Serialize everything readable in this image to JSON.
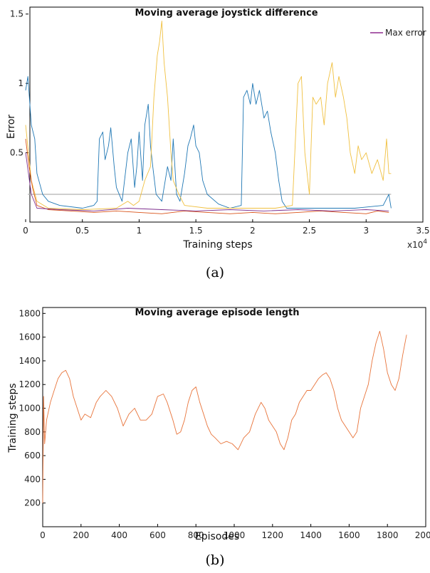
{
  "charts": [
    {
      "type": "line",
      "title": "Moving average joystick difference",
      "xlabel": "Training steps",
      "ylabel": "Error",
      "x_multiplier": "x10",
      "x_multiplier_exp": "4",
      "caption": "(a)",
      "xlim": [
        0,
        3.5
      ],
      "ylim": [
        0,
        1.55
      ],
      "xticks": [
        0,
        0.5,
        1,
        1.5,
        2,
        2.5,
        3,
        3.5
      ],
      "xtick_labels": [
        "0",
        "0.5",
        "1",
        "1.5",
        "2",
        "2.5",
        "3",
        "3.5"
      ],
      "yticks": [
        0.5,
        1,
        1.5
      ],
      "ytick_labels": [
        "0.5",
        "1",
        "1.5"
      ],
      "legend": [
        {
          "label": "Max error",
          "color": "#8e2c8e"
        }
      ],
      "threshold": 0.2,
      "series": [
        {
          "color": "#1f77b4",
          "points": [
            [
              0,
              0.95
            ],
            [
              0.02,
              1.05
            ],
            [
              0.05,
              0.7
            ],
            [
              0.08,
              0.6
            ],
            [
              0.1,
              0.35
            ],
            [
              0.15,
              0.2
            ],
            [
              0.2,
              0.15
            ],
            [
              0.3,
              0.12
            ],
            [
              0.5,
              0.1
            ],
            [
              0.6,
              0.12
            ],
            [
              0.63,
              0.15
            ],
            [
              0.65,
              0.6
            ],
            [
              0.68,
              0.65
            ],
            [
              0.7,
              0.45
            ],
            [
              0.73,
              0.55
            ],
            [
              0.75,
              0.68
            ],
            [
              0.78,
              0.4
            ],
            [
              0.8,
              0.25
            ],
            [
              0.85,
              0.15
            ],
            [
              0.9,
              0.5
            ],
            [
              0.93,
              0.6
            ],
            [
              0.96,
              0.25
            ],
            [
              0.98,
              0.4
            ],
            [
              1,
              0.65
            ],
            [
              1.03,
              0.3
            ],
            [
              1.05,
              0.7
            ],
            [
              1.08,
              0.85
            ],
            [
              1.1,
              0.55
            ],
            [
              1.12,
              0.4
            ],
            [
              1.15,
              0.2
            ],
            [
              1.2,
              0.15
            ],
            [
              1.25,
              0.4
            ],
            [
              1.28,
              0.3
            ],
            [
              1.3,
              0.6
            ],
            [
              1.33,
              0.2
            ],
            [
              1.36,
              0.15
            ],
            [
              1.4,
              0.35
            ],
            [
              1.43,
              0.55
            ],
            [
              1.45,
              0.6
            ],
            [
              1.48,
              0.7
            ],
            [
              1.5,
              0.55
            ],
            [
              1.53,
              0.5
            ],
            [
              1.56,
              0.3
            ],
            [
              1.6,
              0.2
            ],
            [
              1.7,
              0.13
            ],
            [
              1.8,
              0.1
            ],
            [
              1.9,
              0.12
            ],
            [
              1.92,
              0.9
            ],
            [
              1.95,
              0.95
            ],
            [
              1.98,
              0.85
            ],
            [
              2.0,
              1.0
            ],
            [
              2.03,
              0.85
            ],
            [
              2.06,
              0.95
            ],
            [
              2.1,
              0.75
            ],
            [
              2.13,
              0.8
            ],
            [
              2.16,
              0.65
            ],
            [
              2.2,
              0.5
            ],
            [
              2.23,
              0.3
            ],
            [
              2.26,
              0.15
            ],
            [
              2.3,
              0.1
            ],
            [
              2.6,
              0.1
            ],
            [
              2.9,
              0.1
            ],
            [
              3.15,
              0.12
            ],
            [
              3.2,
              0.2
            ],
            [
              3.22,
              0.1
            ]
          ]
        },
        {
          "color": "#f0c040",
          "points": [
            [
              0,
              0.7
            ],
            [
              0.05,
              0.3
            ],
            [
              0.1,
              0.15
            ],
            [
              0.2,
              0.1
            ],
            [
              0.5,
              0.09
            ],
            [
              0.8,
              0.1
            ],
            [
              0.9,
              0.15
            ],
            [
              0.95,
              0.12
            ],
            [
              1.0,
              0.15
            ],
            [
              1.05,
              0.3
            ],
            [
              1.1,
              0.4
            ],
            [
              1.13,
              0.9
            ],
            [
              1.16,
              1.2
            ],
            [
              1.18,
              1.3
            ],
            [
              1.2,
              1.45
            ],
            [
              1.22,
              1.15
            ],
            [
              1.25,
              0.9
            ],
            [
              1.28,
              0.5
            ],
            [
              1.3,
              0.3
            ],
            [
              1.35,
              0.2
            ],
            [
              1.4,
              0.12
            ],
            [
              1.6,
              0.1
            ],
            [
              1.8,
              0.1
            ],
            [
              2.0,
              0.1
            ],
            [
              2.2,
              0.1
            ],
            [
              2.35,
              0.12
            ],
            [
              2.4,
              1.0
            ],
            [
              2.43,
              1.05
            ],
            [
              2.46,
              0.5
            ],
            [
              2.5,
              0.2
            ],
            [
              2.53,
              0.9
            ],
            [
              2.56,
              0.85
            ],
            [
              2.6,
              0.9
            ],
            [
              2.63,
              0.7
            ],
            [
              2.66,
              1.0
            ],
            [
              2.7,
              1.15
            ],
            [
              2.73,
              0.9
            ],
            [
              2.76,
              1.05
            ],
            [
              2.8,
              0.9
            ],
            [
              2.83,
              0.75
            ],
            [
              2.86,
              0.5
            ],
            [
              2.9,
              0.35
            ],
            [
              2.93,
              0.55
            ],
            [
              2.96,
              0.45
            ],
            [
              3.0,
              0.5
            ],
            [
              3.05,
              0.35
            ],
            [
              3.1,
              0.45
            ],
            [
              3.15,
              0.3
            ],
            [
              3.18,
              0.6
            ],
            [
              3.2,
              0.35
            ],
            [
              3.22,
              0.35
            ]
          ]
        },
        {
          "color": "#d95319",
          "points": [
            [
              0,
              0.6
            ],
            [
              0.03,
              0.4
            ],
            [
              0.06,
              0.25
            ],
            [
              0.1,
              0.12
            ],
            [
              0.2,
              0.09
            ],
            [
              0.4,
              0.08
            ],
            [
              0.6,
              0.07
            ],
            [
              0.8,
              0.08
            ],
            [
              1.0,
              0.07
            ],
            [
              1.2,
              0.06
            ],
            [
              1.4,
              0.08
            ],
            [
              1.6,
              0.07
            ],
            [
              1.8,
              0.06
            ],
            [
              2.0,
              0.07
            ],
            [
              2.2,
              0.06
            ],
            [
              2.4,
              0.07
            ],
            [
              2.6,
              0.08
            ],
            [
              2.8,
              0.07
            ],
            [
              3.0,
              0.06
            ],
            [
              3.1,
              0.08
            ],
            [
              3.2,
              0.07
            ]
          ]
        },
        {
          "color": "#7e2f8e",
          "points": [
            [
              0,
              0.5
            ],
            [
              0.05,
              0.2
            ],
            [
              0.1,
              0.1
            ],
            [
              0.3,
              0.09
            ],
            [
              0.6,
              0.08
            ],
            [
              0.9,
              0.1
            ],
            [
              1.2,
              0.09
            ],
            [
              1.5,
              0.08
            ],
            [
              1.8,
              0.09
            ],
            [
              2.1,
              0.08
            ],
            [
              2.4,
              0.09
            ],
            [
              2.7,
              0.08
            ],
            [
              3.0,
              0.09
            ],
            [
              3.2,
              0.08
            ]
          ]
        }
      ]
    },
    {
      "type": "line",
      "title": "Moving average episode length",
      "xlabel": "Episodes",
      "ylabel": "Training steps",
      "caption": "(b)",
      "xlim": [
        0,
        2000
      ],
      "ylim": [
        0,
        1850
      ],
      "xticks": [
        0,
        200,
        400,
        600,
        800,
        1000,
        1200,
        1400,
        1600,
        1800,
        2000
      ],
      "xtick_labels": [
        "0",
        "200",
        "400",
        "600",
        "800",
        "1000",
        "1200",
        "1400",
        "1600",
        "1800",
        "2000"
      ],
      "yticks": [
        200,
        400,
        600,
        800,
        1000,
        1200,
        1400,
        1600,
        1800
      ],
      "ytick_labels": [
        "200",
        "400",
        "600",
        "800",
        "1000",
        "1200",
        "1400",
        "1600",
        "1800"
      ],
      "series": [
        {
          "color": "#e8743b",
          "points": [
            [
              0,
              200
            ],
            [
              5,
              1100
            ],
            [
              10,
              700
            ],
            [
              20,
              900
            ],
            [
              40,
              1050
            ],
            [
              60,
              1150
            ],
            [
              80,
              1250
            ],
            [
              100,
              1300
            ],
            [
              120,
              1320
            ],
            [
              140,
              1250
            ],
            [
              160,
              1100
            ],
            [
              180,
              1000
            ],
            [
              200,
              900
            ],
            [
              220,
              950
            ],
            [
              250,
              920
            ],
            [
              280,
              1050
            ],
            [
              300,
              1100
            ],
            [
              330,
              1150
            ],
            [
              360,
              1100
            ],
            [
              390,
              1000
            ],
            [
              420,
              850
            ],
            [
              450,
              950
            ],
            [
              480,
              1000
            ],
            [
              510,
              900
            ],
            [
              540,
              900
            ],
            [
              570,
              950
            ],
            [
              600,
              1100
            ],
            [
              630,
              1120
            ],
            [
              650,
              1050
            ],
            [
              680,
              900
            ],
            [
              700,
              780
            ],
            [
              720,
              800
            ],
            [
              740,
              900
            ],
            [
              760,
              1050
            ],
            [
              780,
              1150
            ],
            [
              800,
              1180
            ],
            [
              820,
              1050
            ],
            [
              840,
              950
            ],
            [
              860,
              850
            ],
            [
              880,
              780
            ],
            [
              900,
              750
            ],
            [
              930,
              700
            ],
            [
              960,
              720
            ],
            [
              990,
              700
            ],
            [
              1020,
              650
            ],
            [
              1050,
              750
            ],
            [
              1080,
              800
            ],
            [
              1110,
              950
            ],
            [
              1140,
              1050
            ],
            [
              1160,
              1000
            ],
            [
              1180,
              900
            ],
            [
              1200,
              850
            ],
            [
              1220,
              800
            ],
            [
              1240,
              700
            ],
            [
              1260,
              650
            ],
            [
              1280,
              750
            ],
            [
              1300,
              900
            ],
            [
              1320,
              950
            ],
            [
              1340,
              1050
            ],
            [
              1360,
              1100
            ],
            [
              1380,
              1150
            ],
            [
              1400,
              1150
            ],
            [
              1420,
              1200
            ],
            [
              1440,
              1250
            ],
            [
              1460,
              1280
            ],
            [
              1480,
              1300
            ],
            [
              1500,
              1250
            ],
            [
              1520,
              1150
            ],
            [
              1540,
              1000
            ],
            [
              1560,
              900
            ],
            [
              1580,
              850
            ],
            [
              1600,
              800
            ],
            [
              1620,
              750
            ],
            [
              1640,
              800
            ],
            [
              1660,
              1000
            ],
            [
              1680,
              1100
            ],
            [
              1700,
              1200
            ],
            [
              1720,
              1400
            ],
            [
              1740,
              1550
            ],
            [
              1760,
              1650
            ],
            [
              1780,
              1500
            ],
            [
              1800,
              1300
            ],
            [
              1820,
              1200
            ],
            [
              1840,
              1150
            ],
            [
              1860,
              1250
            ],
            [
              1880,
              1450
            ],
            [
              1900,
              1620
            ]
          ]
        }
      ]
    }
  ]
}
